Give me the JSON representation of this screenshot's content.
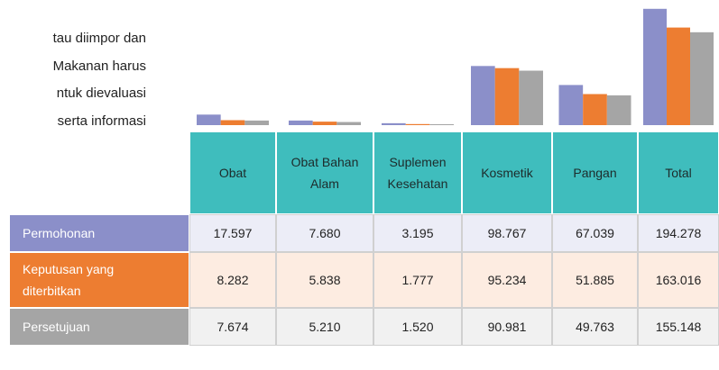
{
  "text_lines": [
    "tau diimpor dan",
    "Makanan harus",
    "ntuk  dievaluasi",
    "serta informasi"
  ],
  "chart_data": {
    "type": "bar",
    "categories": [
      "Obat",
      "Obat Bahan Alam",
      "Suplemen Kesehatan",
      "Kosmetik",
      "Pangan",
      "Total"
    ],
    "ylim": [
      0,
      200000
    ],
    "series": [
      {
        "name": "Permohonan",
        "color": "#8b8fc9",
        "values": [
          17597,
          7680,
          3195,
          98767,
          67039,
          194278
        ],
        "value_labels": [
          "17.597",
          "7.680",
          "3.195",
          "98.767",
          "67.039",
          "194.278"
        ]
      },
      {
        "name": "Keputusan yang diterbitkan",
        "color": "#ed7d31",
        "values": [
          8282,
          5838,
          1777,
          95234,
          51885,
          163016
        ],
        "value_labels": [
          "8.282",
          "5.838",
          "1.777",
          "95.234",
          "51.885",
          "163.016"
        ]
      },
      {
        "name": "Persetujuan",
        "color": "#a5a5a5",
        "values": [
          7674,
          5210,
          1520,
          90981,
          49763,
          155148
        ],
        "value_labels": [
          "7.674",
          "5.210",
          "1.520",
          "90.981",
          "49.763",
          "155.148"
        ]
      }
    ]
  }
}
